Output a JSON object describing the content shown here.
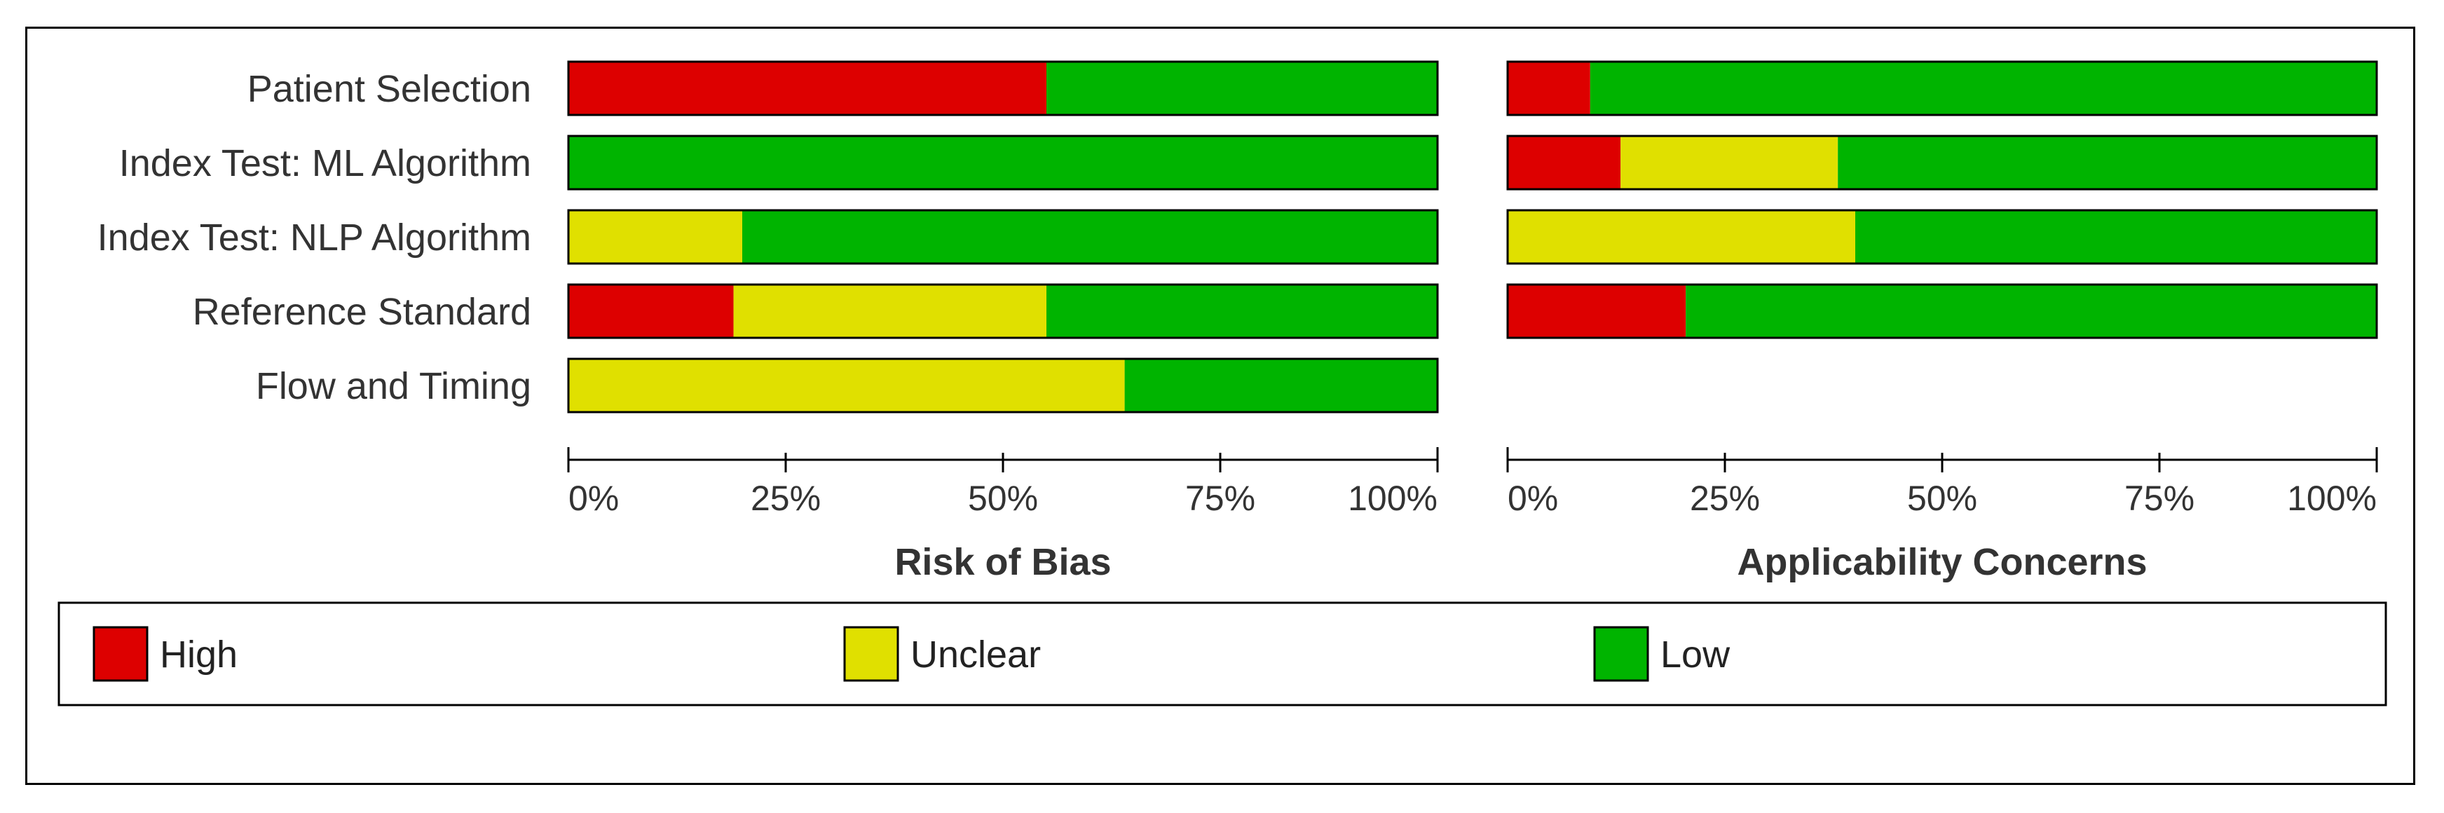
{
  "colors": {
    "High": "#dd0000",
    "Unclear": "#e0e000",
    "Low": "#00b400"
  },
  "chart_data": [
    {
      "type": "bar",
      "stacked": "horizontal-percent",
      "title": "Risk of Bias",
      "categories": [
        "Patient Selection",
        "Index Test: ML Algorithm",
        "Index Test: NLP Algorithm",
        "Reference Standard",
        "Flow and Timing"
      ],
      "series": [
        {
          "name": "High",
          "values": [
            55,
            0,
            0,
            19,
            0
          ]
        },
        {
          "name": "Unclear",
          "values": [
            0,
            0,
            20,
            36,
            64
          ]
        },
        {
          "name": "Low",
          "values": [
            45,
            100,
            80,
            45,
            36
          ]
        }
      ],
      "xlim": [
        0,
        100
      ],
      "ticks": [
        "0%",
        "25%",
        "50%",
        "75%",
        "100%"
      ]
    },
    {
      "type": "bar",
      "stacked": "horizontal-percent",
      "title": "Applicability Concerns",
      "categories": [
        "Patient Selection",
        "Index Test: ML Algorithm",
        "Index Test: NLP Algorithm",
        "Reference Standard"
      ],
      "series": [
        {
          "name": "High",
          "values": [
            9.5,
            13,
            0,
            20.5
          ]
        },
        {
          "name": "Unclear",
          "values": [
            0,
            25,
            40,
            0
          ]
        },
        {
          "name": "Low",
          "values": [
            90.5,
            62,
            60,
            79.5
          ]
        }
      ],
      "xlim": [
        0,
        100
      ],
      "ticks": [
        "0%",
        "25%",
        "50%",
        "75%",
        "100%"
      ]
    }
  ],
  "legend": [
    {
      "label": "High",
      "color": "#dd0000"
    },
    {
      "label": "Unclear",
      "color": "#e0e000"
    },
    {
      "label": "Low",
      "color": "#00b400"
    }
  ]
}
